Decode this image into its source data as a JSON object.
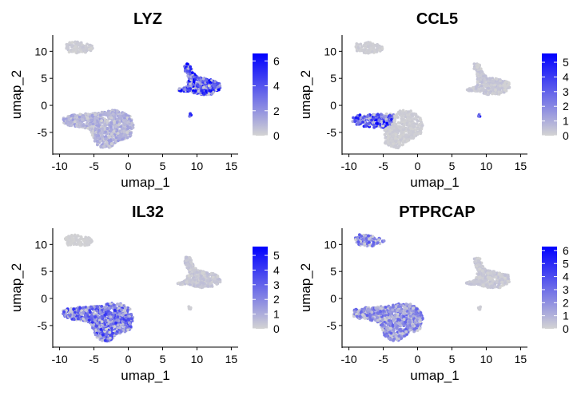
{
  "chart_data": [
    {
      "type": "scatter",
      "title": "LYZ",
      "xlabel": "umap_1",
      "ylabel": "umap_2",
      "xlim": [
        -11,
        16
      ],
      "ylim": [
        -9,
        13
      ],
      "x_ticks": [
        -10,
        -5,
        0,
        5,
        10,
        15
      ],
      "y_ticks": [
        -5,
        0,
        5,
        10
      ],
      "color_scale": {
        "low": "#d3d3d3",
        "high": "#0000ff",
        "ticks": [
          0,
          2,
          4,
          6
        ],
        "max": 6.6
      },
      "clusters": [
        {
          "name": "top",
          "cx": -7.2,
          "cy": 10.5,
          "value": 0.3
        },
        {
          "name": "left",
          "cx": -3.5,
          "cy": -3.5,
          "value": 1.2
        },
        {
          "name": "right",
          "cx": 11.0,
          "cy": 3.8,
          "value": 4.8
        },
        {
          "name": "tiny",
          "cx": 9.0,
          "cy": -1.8,
          "value": 5.0
        }
      ]
    },
    {
      "type": "scatter",
      "title": "CCL5",
      "xlabel": "umap_1",
      "ylabel": "umap_2",
      "xlim": [
        -11,
        16
      ],
      "ylim": [
        -9,
        13
      ],
      "x_ticks": [
        -10,
        -5,
        0,
        5,
        10,
        15
      ],
      "y_ticks": [
        -5,
        0,
        5,
        10
      ],
      "color_scale": {
        "low": "#d3d3d3",
        "high": "#0000ff",
        "ticks": [
          0,
          1,
          2,
          3,
          4,
          5
        ],
        "max": 5.6
      },
      "clusters": [
        {
          "name": "top",
          "cx": -7.2,
          "cy": 10.5,
          "value": 0.2
        },
        {
          "name": "left-west",
          "cx": -6.0,
          "cy": -2.8,
          "value": 3.8
        },
        {
          "name": "left-east",
          "cx": -1.5,
          "cy": -3.8,
          "value": 0.2
        },
        {
          "name": "right",
          "cx": 11.0,
          "cy": 3.8,
          "value": 0.4
        },
        {
          "name": "tiny",
          "cx": 9.0,
          "cy": -1.8,
          "value": 4.5
        }
      ]
    },
    {
      "type": "scatter",
      "title": "IL32",
      "xlabel": "umap_1",
      "ylabel": "umap_2",
      "xlim": [
        -11,
        16
      ],
      "ylim": [
        -9,
        13
      ],
      "x_ticks": [
        -10,
        -5,
        0,
        5,
        10,
        15
      ],
      "y_ticks": [
        -5,
        0,
        5,
        10
      ],
      "color_scale": {
        "low": "#d3d3d3",
        "high": "#0000ff",
        "ticks": [
          0,
          1,
          2,
          3,
          4,
          5
        ],
        "max": 5.6
      },
      "clusters": [
        {
          "name": "top",
          "cx": -7.2,
          "cy": 10.5,
          "value": 0.1
        },
        {
          "name": "left",
          "cx": -3.5,
          "cy": -3.5,
          "value": 3.0
        },
        {
          "name": "right",
          "cx": 11.0,
          "cy": 3.8,
          "value": 0.4
        },
        {
          "name": "tiny",
          "cx": 9.0,
          "cy": -1.8,
          "value": 0.2
        }
      ]
    },
    {
      "type": "scatter",
      "title": "PTPRCAP",
      "xlabel": "umap_1",
      "ylabel": "umap_2",
      "xlim": [
        -11,
        16
      ],
      "ylim": [
        -9,
        13
      ],
      "x_ticks": [
        -10,
        -5,
        0,
        5,
        10,
        15
      ],
      "y_ticks": [
        -5,
        0,
        5,
        10
      ],
      "color_scale": {
        "low": "#d3d3d3",
        "high": "#0000ff",
        "ticks": [
          0,
          1,
          2,
          3,
          4,
          5,
          6
        ],
        "max": 6.3
      },
      "clusters": [
        {
          "name": "top",
          "cx": -7.2,
          "cy": 10.5,
          "value": 2.6
        },
        {
          "name": "left",
          "cx": -3.5,
          "cy": -3.5,
          "value": 2.4
        },
        {
          "name": "right",
          "cx": 11.0,
          "cy": 3.8,
          "value": 0.4
        },
        {
          "name": "tiny",
          "cx": 9.0,
          "cy": -1.8,
          "value": 0.2
        }
      ]
    }
  ]
}
